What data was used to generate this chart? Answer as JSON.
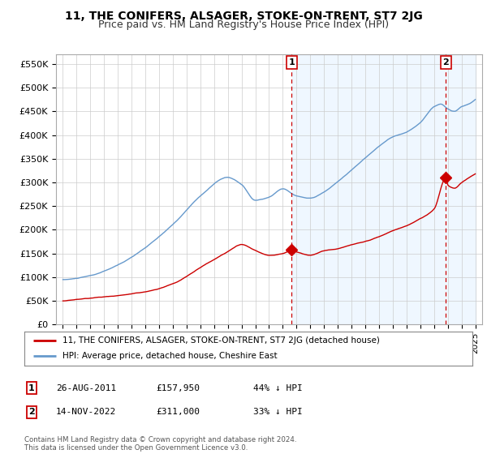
{
  "title": "11, THE CONIFERS, ALSAGER, STOKE-ON-TRENT, ST7 2JG",
  "subtitle": "Price paid vs. HM Land Registry's House Price Index (HPI)",
  "title_fontsize": 10,
  "subtitle_fontsize": 9,
  "ylabel_ticks": [
    "£0",
    "£50K",
    "£100K",
    "£150K",
    "£200K",
    "£250K",
    "£300K",
    "£350K",
    "£400K",
    "£450K",
    "£500K",
    "£550K"
  ],
  "ytick_values": [
    0,
    50000,
    100000,
    150000,
    200000,
    250000,
    300000,
    350000,
    400000,
    450000,
    500000,
    550000
  ],
  "ylim": [
    0,
    570000
  ],
  "xlim_start": 1994.5,
  "xlim_end": 2025.5,
  "xtick_years": [
    1995,
    1996,
    1997,
    1998,
    1999,
    2000,
    2001,
    2002,
    2003,
    2004,
    2005,
    2006,
    2007,
    2008,
    2009,
    2010,
    2011,
    2012,
    2013,
    2014,
    2015,
    2016,
    2017,
    2018,
    2019,
    2020,
    2021,
    2022,
    2023,
    2024,
    2025
  ],
  "red_color": "#cc0000",
  "blue_color": "#6699cc",
  "blue_fill": "#ddeeff",
  "marker1_date": 2011.65,
  "marker1_price": 157950,
  "marker2_date": 2022.87,
  "marker2_price": 311000,
  "legend_entries": [
    "11, THE CONIFERS, ALSAGER, STOKE-ON-TRENT, ST7 2JG (detached house)",
    "HPI: Average price, detached house, Cheshire East"
  ],
  "table_rows": [
    [
      "1",
      "26-AUG-2011",
      "£157,950",
      "44% ↓ HPI"
    ],
    [
      "2",
      "14-NOV-2022",
      "£311,000",
      "33% ↓ HPI"
    ]
  ],
  "footer_text": "Contains HM Land Registry data © Crown copyright and database right 2024.\nThis data is licensed under the Open Government Licence v3.0.",
  "bg_color": "#ffffff",
  "grid_color": "#cccccc"
}
